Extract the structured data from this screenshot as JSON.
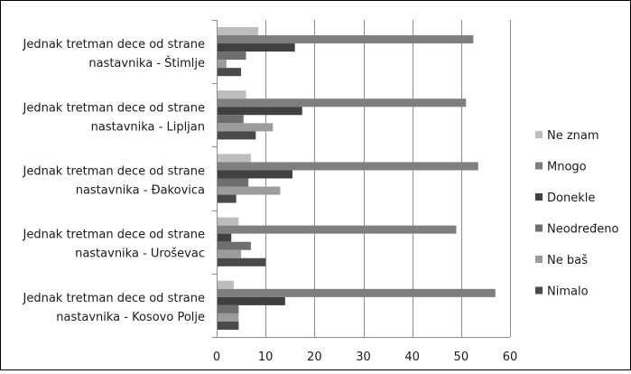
{
  "chart_data": {
    "type": "bar",
    "orientation": "horizontal",
    "categories": [
      [
        "Jednak tretman dece od strane",
        "nastavnika - Štimlje"
      ],
      [
        "Jednak tretman dece od strane",
        "nastavnika - Lipljan"
      ],
      [
        "Jednak tretman dece od strane",
        "nastavnika - Đakovica"
      ],
      [
        "Jednak tretman dece od strane",
        "nastavnika - Uroševac"
      ],
      [
        "Jednak tretman dece od strane",
        "nastavnika - Kosovo Polje"
      ]
    ],
    "series": [
      {
        "name": "Ne znam",
        "color": "#bdbdbd",
        "values": [
          8.5,
          6,
          7,
          4.5,
          3.5
        ]
      },
      {
        "name": "Mnogo",
        "color": "#7f7f7f",
        "values": [
          52.5,
          51,
          53.5,
          49,
          57
        ]
      },
      {
        "name": "Donekle",
        "color": "#404040",
        "values": [
          16,
          17.5,
          15.5,
          3,
          14
        ]
      },
      {
        "name": "Neodređeno",
        "color": "#6e6e6e",
        "values": [
          6,
          5.5,
          6.5,
          7,
          4.5
        ]
      },
      {
        "name": "Ne baš",
        "color": "#9c9c9c",
        "values": [
          2,
          11.5,
          13,
          5,
          4.5
        ]
      },
      {
        "name": "Nimalo",
        "color": "#4a4a4a",
        "values": [
          5,
          8,
          4,
          10,
          4.5
        ]
      }
    ],
    "xlim": [
      0,
      60
    ],
    "xticks": [
      0,
      10,
      20,
      30,
      40,
      50,
      60
    ],
    "grid": "vertical",
    "legend_position": "right"
  }
}
